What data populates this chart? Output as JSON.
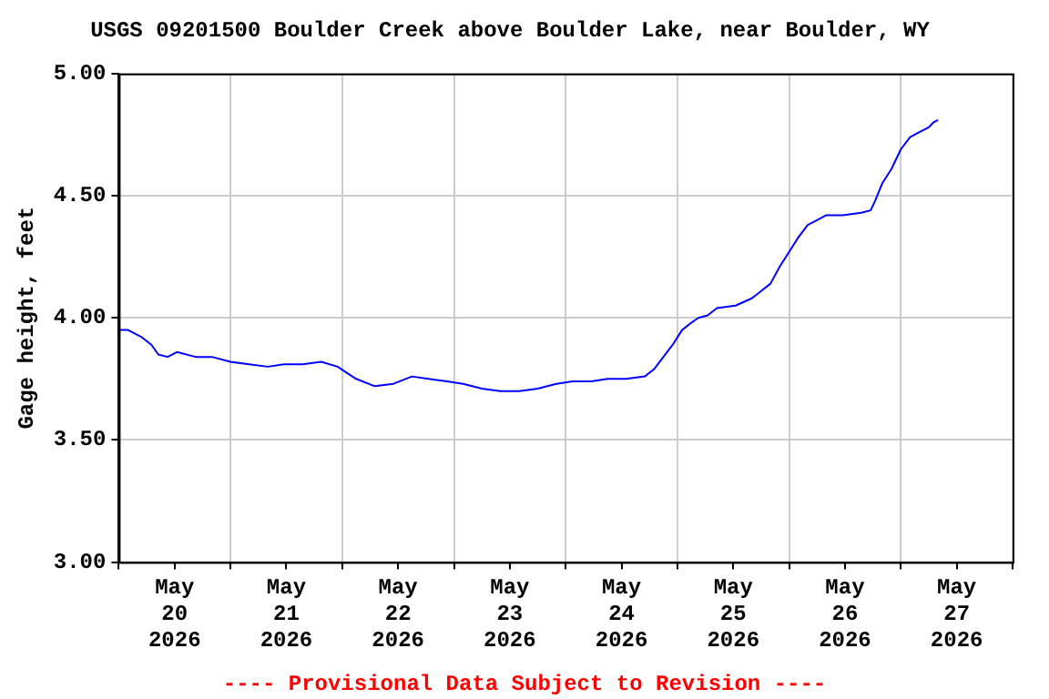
{
  "chart_data": {
    "type": "line",
    "title": "USGS 09201500 Boulder Creek above Boulder Lake, near Boulder, WY",
    "ylabel": "Gage height, feet",
    "annotations": [
      "---- Provisional Data Subject to Revision ----"
    ],
    "x": [
      "2026-05-20T00:00",
      "2026-05-20T02:00",
      "2026-05-20T05:00",
      "2026-05-20T07:00",
      "2026-05-20T08:30",
      "2026-05-20T10:30",
      "2026-05-20T12:30",
      "2026-05-20T16:30",
      "2026-05-20T20:00",
      "2026-05-21T00:00",
      "2026-05-21T04:00",
      "2026-05-21T08:00",
      "2026-05-21T11:30",
      "2026-05-21T15:30",
      "2026-05-21T19:30",
      "2026-05-21T23:00",
      "2026-05-22T03:00",
      "2026-05-22T07:00",
      "2026-05-22T11:00",
      "2026-05-22T15:00",
      "2026-05-22T18:30",
      "2026-05-22T22:30",
      "2026-05-23T02:00",
      "2026-05-23T06:00",
      "2026-05-23T10:00",
      "2026-05-23T14:00",
      "2026-05-23T18:00",
      "2026-05-23T22:00",
      "2026-05-24T01:30",
      "2026-05-24T05:30",
      "2026-05-24T09:00",
      "2026-05-24T13:00",
      "2026-05-24T17:00",
      "2026-05-24T19:00",
      "2026-05-24T21:00",
      "2026-05-24T23:00",
      "2026-05-25T01:00",
      "2026-05-25T03:00",
      "2026-05-25T04:30",
      "2026-05-25T06:30",
      "2026-05-25T08:30",
      "2026-05-25T12:30",
      "2026-05-25T16:00",
      "2026-05-25T18:00",
      "2026-05-25T20:00",
      "2026-05-25T22:00",
      "2026-05-26T00:00",
      "2026-05-26T02:00",
      "2026-05-26T04:00",
      "2026-05-26T06:00",
      "2026-05-26T08:00",
      "2026-05-26T11:30",
      "2026-05-26T15:30",
      "2026-05-26T17:30",
      "2026-05-26T18:30",
      "2026-05-26T20:00",
      "2026-05-26T22:00",
      "2026-05-27T00:00",
      "2026-05-27T02:00",
      "2026-05-27T04:00",
      "2026-05-27T06:00",
      "2026-05-27T07:00",
      "2026-05-27T08:00"
    ],
    "series": [
      {
        "color": "#0000ff",
        "values": [
          3.95,
          3.95,
          3.92,
          3.89,
          3.85,
          3.84,
          3.86,
          3.84,
          3.84,
          3.82,
          3.81,
          3.8,
          3.81,
          3.81,
          3.82,
          3.8,
          3.75,
          3.72,
          3.73,
          3.76,
          3.75,
          3.74,
          3.73,
          3.71,
          3.7,
          3.7,
          3.71,
          3.73,
          3.74,
          3.74,
          3.75,
          3.75,
          3.76,
          3.79,
          3.84,
          3.89,
          3.95,
          3.98,
          4.0,
          4.01,
          4.04,
          4.05,
          4.08,
          4.11,
          4.14,
          4.21,
          4.27,
          4.33,
          4.38,
          4.4,
          4.42,
          4.42,
          4.43,
          4.44,
          4.48,
          4.55,
          4.61,
          4.69,
          4.74,
          4.76,
          4.78,
          4.8,
          4.81
        ]
      }
    ],
    "xlim": [
      "2026-05-20T00:00",
      "2026-05-28T00:00"
    ],
    "xticks": [
      {
        "value": "2026-05-20T00:00",
        "label": null
      },
      {
        "value": "2026-05-20T12:00",
        "label": "May 20 2026"
      },
      {
        "value": "2026-05-21T00:00",
        "label": null
      },
      {
        "value": "2026-05-21T12:00",
        "label": "May 21 2026"
      },
      {
        "value": "2026-05-22T00:00",
        "label": null
      },
      {
        "value": "2026-05-22T12:00",
        "label": "May 22 2026"
      },
      {
        "value": "2026-05-23T00:00",
        "label": null
      },
      {
        "value": "2026-05-23T12:00",
        "label": "May 23 2026"
      },
      {
        "value": "2026-05-24T00:00",
        "label": null
      },
      {
        "value": "2026-05-24T12:00",
        "label": "May 24 2026"
      },
      {
        "value": "2026-05-25T00:00",
        "label": null
      },
      {
        "value": "2026-05-25T12:00",
        "label": "May 25 2026"
      },
      {
        "value": "2026-05-26T00:00",
        "label": null
      },
      {
        "value": "2026-05-26T12:00",
        "label": "May 26 2026"
      },
      {
        "value": "2026-05-27T00:00",
        "label": null
      },
      {
        "value": "2026-05-27T12:00",
        "label": "May 27 2026"
      },
      {
        "value": "2026-05-28T00:00",
        "label": null
      }
    ],
    "ylim": [
      3,
      5
    ],
    "yticks": [
      {
        "value": 3,
        "label": "3.00"
      },
      {
        "value": 3.5,
        "label": "3.50"
      },
      {
        "value": 4,
        "label": "4.00"
      },
      {
        "value": 4.5,
        "label": "4.50"
      },
      {
        "value": 5,
        "label": "5.00"
      }
    ],
    "grid": true,
    "legend": false,
    "marker": "none",
    "line_style": "solid"
  }
}
